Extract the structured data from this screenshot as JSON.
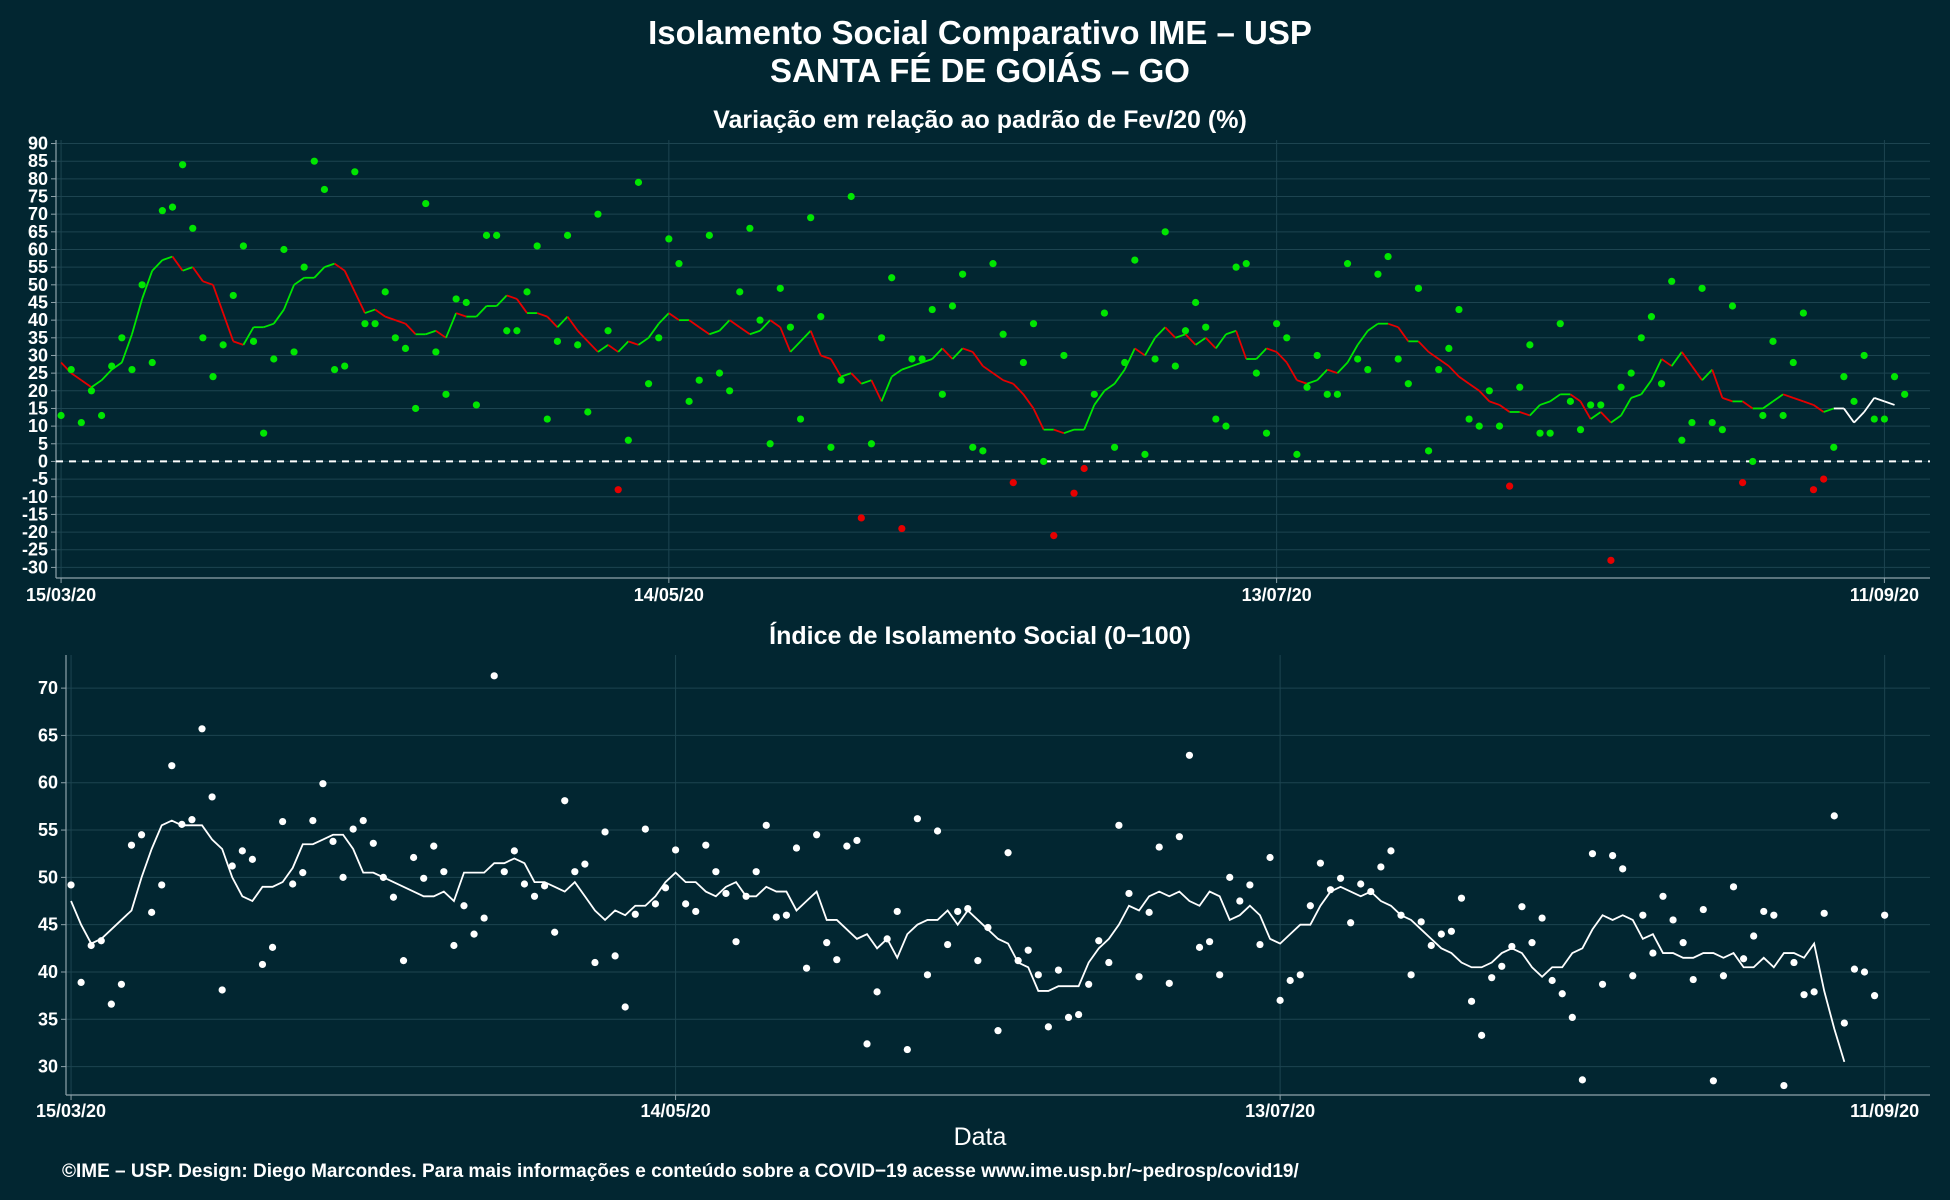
{
  "header": {
    "title_line1": "Isolamento Social Comparativo IME – USP",
    "title_line2": "SANTA FÉ DE GOIÁS – GO"
  },
  "caption": "©IME – USP. Design: Diego Marcondes. Para mais informações e conteúdo sobre a COVID−19 acesse www.ime.usp.br/~pedrosp/covid19/",
  "colors": {
    "background": "#022631",
    "panel_border": "#8fa3ab",
    "grid": "#1d4450",
    "positive": "#00e600",
    "negative": "#e60000",
    "index": "#ffffff"
  },
  "chart_data": [
    {
      "type": "scatter",
      "title": "Variação em relação ao padrão de Fev/20 (%)",
      "xlabel": "",
      "x_ticks": [
        "15/03/20",
        "14/05/20",
        "13/07/20",
        "11/09/20"
      ],
      "x_tick_days": [
        0,
        60,
        120,
        180
      ],
      "xlim_days": [
        -0.5,
        184.5
      ],
      "ylim": [
        -33,
        91
      ],
      "yticks": [
        -30,
        -25,
        -20,
        -15,
        -10,
        -5,
        0,
        5,
        10,
        15,
        20,
        25,
        30,
        35,
        40,
        45,
        50,
        55,
        60,
        65,
        70,
        75,
        80,
        85,
        90
      ],
      "reference_line": 0,
      "start_date": "15/03/20",
      "daily_points": [
        13,
        26,
        11,
        20,
        13,
        27,
        35,
        26,
        50,
        28,
        71,
        72,
        84,
        66,
        35,
        24,
        33,
        47,
        61,
        34,
        8,
        29,
        60,
        31,
        55,
        85,
        77,
        26,
        27,
        82,
        39,
        39,
        48,
        35,
        32,
        15,
        73,
        31,
        19,
        46,
        45,
        16,
        64,
        64,
        37,
        37,
        48,
        61,
        12,
        34,
        64,
        33,
        14,
        70,
        37,
        -8,
        6,
        79,
        22,
        35,
        63,
        56,
        17,
        23,
        64,
        25,
        20,
        48,
        66,
        40,
        5,
        49,
        38,
        12,
        69,
        41,
        4,
        23,
        75,
        -16,
        5,
        35,
        52,
        -19,
        29,
        29,
        43,
        19,
        44,
        53,
        4,
        3,
        56,
        36,
        -6,
        28,
        39,
        0,
        -21,
        30,
        -9,
        -2,
        19,
        42,
        4,
        28,
        57,
        2,
        29,
        65,
        27,
        37,
        45,
        38,
        12,
        10,
        55,
        56,
        25,
        8,
        39,
        35,
        2,
        21,
        30,
        19,
        19,
        56,
        29,
        26,
        53,
        58,
        29,
        22,
        49,
        3,
        26,
        32,
        43,
        12,
        10,
        20,
        10,
        -7,
        21,
        33,
        8,
        8,
        39,
        17,
        9,
        16,
        16,
        -28,
        21,
        25,
        35,
        41,
        22,
        51,
        6,
        11,
        49,
        11,
        9,
        44,
        -6,
        0,
        13,
        34,
        13,
        28,
        42,
        -8,
        -5,
        4,
        24,
        17,
        30,
        12,
        12,
        24,
        19
      ],
      "moving_average": [
        28,
        25,
        23,
        21,
        23,
        26,
        28,
        36,
        46,
        54,
        57,
        58,
        54,
        55,
        51,
        50,
        42,
        34,
        33,
        38,
        38,
        39,
        43,
        50,
        52,
        52,
        55,
        56,
        54,
        48,
        42,
        43,
        41,
        40,
        39,
        36,
        36,
        37,
        35,
        42,
        41,
        41,
        44,
        44,
        47,
        46,
        42,
        42,
        41,
        38,
        41,
        37,
        34,
        31,
        33,
        31,
        34,
        33,
        35,
        39,
        42,
        40,
        40,
        38,
        36,
        37,
        40,
        38,
        36,
        37,
        40,
        38,
        31,
        34,
        37,
        30,
        29,
        24,
        25,
        22,
        23,
        17,
        24,
        26,
        27,
        28,
        29,
        32,
        29,
        32,
        31,
        27,
        25,
        23,
        22,
        19,
        15,
        9,
        9,
        8,
        9,
        9,
        16,
        20,
        22,
        26,
        32,
        30,
        35,
        38,
        35,
        36,
        33,
        35,
        32,
        36,
        37,
        29,
        29,
        32,
        31,
        28,
        23,
        22,
        23,
        26,
        25,
        28,
        33,
        37,
        39,
        39,
        38,
        34,
        34,
        31,
        29,
        27,
        24,
        22,
        20,
        17,
        16,
        14,
        14,
        13,
        16,
        17,
        19,
        19,
        17,
        12,
        14,
        11,
        13,
        18,
        19,
        23,
        29,
        27,
        31,
        27,
        23,
        26,
        18,
        17,
        17,
        15,
        15,
        17,
        19,
        18,
        17,
        16,
        14,
        15,
        15,
        11,
        14,
        18,
        17,
        16
      ],
      "series_colors_rule": "green where value increased vs previous day, red where decreased"
    },
    {
      "type": "scatter",
      "title": "Índice de Isolamento Social (0−100)",
      "xlabel": "Data",
      "x_ticks": [
        "15/03/20",
        "14/05/20",
        "13/07/20",
        "11/09/20"
      ],
      "x_tick_days": [
        0,
        60,
        120,
        180
      ],
      "xlim_days": [
        -0.5,
        184.5
      ],
      "ylim": [
        27,
        73.5
      ],
      "yticks": [
        30,
        35,
        40,
        45,
        50,
        55,
        60,
        65,
        70
      ],
      "daily_points": [
        49.2,
        38.9,
        42.8,
        43.3,
        36.6,
        38.7,
        53.4,
        54.5,
        46.3,
        49.2,
        61.8,
        55.6,
        56.1,
        65.7,
        58.5,
        38.1,
        51.2,
        52.8,
        51.9,
        40.8,
        42.6,
        55.9,
        49.3,
        50.5,
        56.0,
        59.9,
        53.8,
        50.0,
        55.1,
        56.0,
        53.6,
        50.0,
        47.9,
        41.2,
        52.1,
        49.9,
        53.3,
        50.6,
        42.8,
        47.0,
        44.0,
        45.7,
        71.3,
        50.6,
        52.8,
        49.3,
        48.0,
        49.1,
        44.2,
        58.1,
        50.6,
        51.4,
        41.0,
        54.8,
        41.7,
        36.3,
        46.1,
        55.1,
        47.2,
        48.9,
        52.9,
        47.2,
        46.4,
        53.4,
        50.6,
        48.3,
        43.2,
        48.0,
        50.6,
        55.5,
        45.8,
        46.0,
        53.1,
        40.4,
        54.5,
        43.1,
        41.3,
        53.3,
        53.9,
        32.4,
        37.9,
        43.5,
        46.4,
        31.8,
        56.2,
        39.7,
        54.9,
        42.9,
        46.4,
        46.7,
        41.2,
        44.7,
        33.8,
        52.6,
        41.2,
        42.3,
        39.7,
        34.2,
        40.2,
        35.2,
        35.5,
        38.7,
        43.3,
        41.0,
        55.5,
        48.3,
        39.5,
        46.3,
        53.2,
        38.8,
        54.3,
        62.9,
        42.6,
        43.2,
        39.7,
        50.0,
        47.5,
        49.2,
        42.9,
        52.1,
        37.0,
        39.1,
        39.7,
        47.0,
        51.5,
        48.7,
        49.9,
        45.2,
        49.3,
        48.5,
        51.1,
        52.8,
        46.0,
        39.7,
        45.3,
        42.8,
        44.0,
        44.3,
        47.8,
        36.9,
        33.3,
        39.4,
        40.6,
        42.7,
        46.9,
        43.1,
        45.7,
        39.1,
        37.7,
        35.2,
        28.6,
        52.5,
        38.7,
        52.3,
        50.9,
        39.6,
        46.0,
        42.0,
        48.0,
        45.5,
        43.1,
        39.2,
        46.6,
        28.5,
        39.6,
        49.0,
        41.4,
        43.8,
        46.4,
        46.0,
        28.0,
        41.0,
        37.6,
        37.9,
        46.2,
        56.5,
        34.6,
        40.3,
        40.0,
        37.5,
        46.0
      ],
      "moving_average": [
        47.5,
        45.0,
        43.0,
        43.5,
        44.5,
        45.5,
        46.5,
        50.0,
        53.0,
        55.5,
        56.0,
        55.5,
        55.5,
        55.5,
        54.0,
        53.0,
        50.0,
        48.0,
        47.5,
        49.0,
        49.0,
        49.5,
        51.0,
        53.5,
        53.5,
        54.0,
        54.5,
        54.5,
        53.0,
        50.5,
        50.5,
        50.0,
        49.5,
        49.0,
        48.5,
        48.0,
        48.0,
        48.5,
        47.5,
        50.5,
        50.5,
        50.5,
        51.5,
        51.5,
        52.0,
        51.5,
        49.5,
        49.5,
        49.0,
        48.5,
        49.5,
        48.0,
        46.5,
        45.5,
        46.5,
        46.0,
        47.0,
        47.0,
        48.0,
        49.5,
        50.5,
        49.5,
        49.5,
        48.5,
        48.0,
        49.0,
        49.5,
        48.0,
        48.0,
        49.0,
        48.5,
        48.5,
        46.5,
        47.5,
        48.5,
        45.5,
        45.5,
        44.5,
        43.5,
        44.0,
        42.5,
        43.5,
        41.5,
        44.0,
        45.0,
        45.5,
        45.5,
        46.5,
        45.0,
        46.5,
        45.5,
        44.5,
        43.5,
        43.0,
        41.0,
        40.5,
        38.0,
        38.0,
        38.5,
        38.5,
        38.5,
        41.0,
        42.5,
        43.5,
        45.0,
        47.0,
        46.5,
        48.0,
        48.5,
        48.0,
        48.5,
        47.5,
        47.0,
        48.5,
        48.0,
        45.5,
        46.0,
        47.0,
        46.0,
        43.5,
        43.0,
        44.0,
        45.0,
        45.0,
        47.0,
        48.5,
        49.0,
        48.5,
        48.0,
        48.5,
        47.5,
        47.0,
        46.0,
        45.5,
        44.5,
        43.5,
        42.5,
        42.0,
        41.0,
        40.5,
        40.5,
        41.0,
        42.0,
        42.5,
        42.0,
        40.5,
        39.5,
        40.5,
        40.5,
        42.0,
        42.5,
        44.5,
        46.0,
        45.5,
        46.0,
        45.5,
        43.5,
        44.0,
        42.0,
        42.0,
        41.5,
        41.5,
        42.0,
        42.0,
        41.5,
        42.0,
        40.5,
        40.5,
        41.5,
        40.5,
        42.0,
        42.0,
        41.5,
        43.0,
        38.0,
        34.0,
        30.5
      ]
    }
  ]
}
